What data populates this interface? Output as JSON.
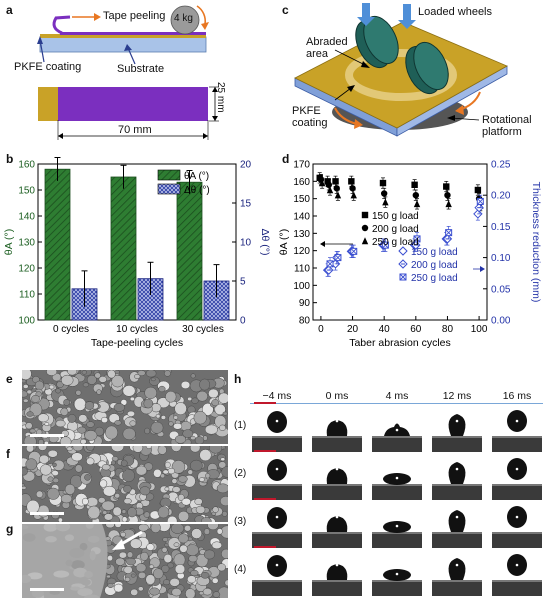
{
  "panels": {
    "a": {
      "letter": "a",
      "tape_peeling": "Tape peeling",
      "weight": "4 kg",
      "coating": "PKFE coating",
      "substrate": "Substrate",
      "height": "25 mm",
      "width": "70 mm"
    },
    "c": {
      "letter": "c",
      "loaded_wheels": "Loaded wheels",
      "abraded_area_1": "Abraded",
      "abraded_area_2": "area",
      "coating_1": "PKFE",
      "coating_2": "coating",
      "platform_1": "Rotational",
      "platform_2": "platform"
    },
    "e": {
      "letter": "e"
    },
    "f": {
      "letter": "f"
    },
    "g": {
      "letter": "g"
    },
    "h": {
      "letter": "h",
      "times": [
        "−4 ms",
        "0 ms",
        "4 ms",
        "12 ms",
        "16 ms"
      ],
      "rows": [
        "(1)",
        "(2)",
        "(3)",
        "(4)"
      ]
    }
  },
  "chart_data": [
    {
      "panel": "b",
      "type": "bar",
      "categories": [
        "0 cycles",
        "10 cycles",
        "30 cycles"
      ],
      "xlabel": "Tape-peeling cycles",
      "ylabel_left": "θA (°)",
      "ylabel_right": "Δθ (°)",
      "ylim_left": [
        100,
        160
      ],
      "ylim_right": [
        0,
        20
      ],
      "yticks_left": [
        100,
        110,
        120,
        130,
        140,
        150,
        160
      ],
      "yticks_right": [
        0,
        5,
        10,
        15,
        20
      ],
      "series": [
        {
          "name": "θA (°)",
          "axis": "left",
          "color": "#2e7d32",
          "hatch": "diagonal",
          "values": [
            158,
            155,
            153
          ],
          "errors": [
            4.5,
            4.5,
            4.5
          ]
        },
        {
          "name": "Δθ (°)",
          "axis": "right",
          "color": "#2f3fa6",
          "hatch": "cross",
          "values": [
            4.0,
            5.3,
            5.0
          ],
          "errors": [
            2.3,
            2.1,
            2.1
          ]
        }
      ],
      "legend": "top-right"
    },
    {
      "panel": "d",
      "type": "scatter",
      "xlabel": "Taber abrasion cycles",
      "ylabel_left": "θA (°)",
      "ylabel_right": "Thickness reduction (mm)",
      "xlim": [
        -5,
        105
      ],
      "xticks": [
        0,
        20,
        40,
        60,
        80,
        100
      ],
      "ylim_left": [
        80,
        170
      ],
      "yticks_left": [
        80,
        90,
        100,
        110,
        120,
        130,
        140,
        150,
        160,
        170
      ],
      "ylim_right": [
        0,
        0.25
      ],
      "yticks_right": [
        0.0,
        0.05,
        0.1,
        0.15,
        0.2,
        0.25
      ],
      "yticks_right_labels": [
        "0.00",
        "0.05",
        "0.10",
        "0.15",
        "0.20",
        "0.25"
      ],
      "series": [
        {
          "name": "150 g load",
          "axis": "left",
          "marker": "square",
          "color": "#000000",
          "x": [
            0,
            5,
            10,
            20,
            40,
            60,
            80,
            100
          ],
          "y": [
            162,
            160,
            160,
            160,
            159,
            158,
            157,
            155
          ],
          "errors": [
            3,
            3,
            3,
            3,
            3,
            3,
            3,
            3
          ]
        },
        {
          "name": "200 g load",
          "axis": "left",
          "marker": "circle",
          "color": "#000000",
          "x": [
            0,
            5,
            10,
            20,
            40,
            60,
            80,
            100
          ],
          "y": [
            161,
            158,
            156,
            156,
            153,
            152,
            152,
            150
          ],
          "errors": [
            3,
            3,
            3,
            3,
            3,
            3,
            3,
            3
          ]
        },
        {
          "name": "250 g load",
          "axis": "left",
          "marker": "triangle",
          "color": "#000000",
          "x": [
            0,
            5,
            10,
            20,
            40,
            60,
            80,
            100
          ],
          "y": [
            159,
            155,
            152,
            152,
            148,
            147,
            147,
            146
          ],
          "errors": [
            3,
            3,
            3,
            3,
            3,
            3,
            3,
            3
          ]
        },
        {
          "name": "150 g load",
          "axis": "right",
          "marker": "diamond-open",
          "color": "#3b4fd0",
          "x": [
            5,
            10,
            20,
            40,
            60,
            80,
            100
          ],
          "y": [
            0.08,
            0.09,
            0.11,
            0.12,
            0.12,
            0.13,
            0.17
          ],
          "errors": [
            0.01,
            0.01,
            0.01,
            0.01,
            0.01,
            0.01,
            0.01
          ]
        },
        {
          "name": "200 g load",
          "axis": "right",
          "marker": "diamond-cross",
          "color": "#3b4fd0",
          "x": [
            5,
            10,
            20,
            40,
            60,
            80,
            100
          ],
          "y": [
            0.08,
            0.1,
            0.11,
            0.12,
            0.12,
            0.13,
            0.18
          ],
          "errors": [
            0.01,
            0.01,
            0.01,
            0.01,
            0.01,
            0.01,
            0.01
          ]
        },
        {
          "name": "250 g load",
          "axis": "right",
          "marker": "x-box",
          "color": "#3b4fd0",
          "x": [
            5,
            10,
            20,
            40,
            60,
            80,
            100
          ],
          "y": [
            0.09,
            0.1,
            0.11,
            0.12,
            0.13,
            0.14,
            0.19
          ],
          "errors": [
            0.01,
            0.01,
            0.01,
            0.01,
            0.01,
            0.01,
            0.01
          ]
        }
      ],
      "legend": "left-center and right-center"
    }
  ]
}
